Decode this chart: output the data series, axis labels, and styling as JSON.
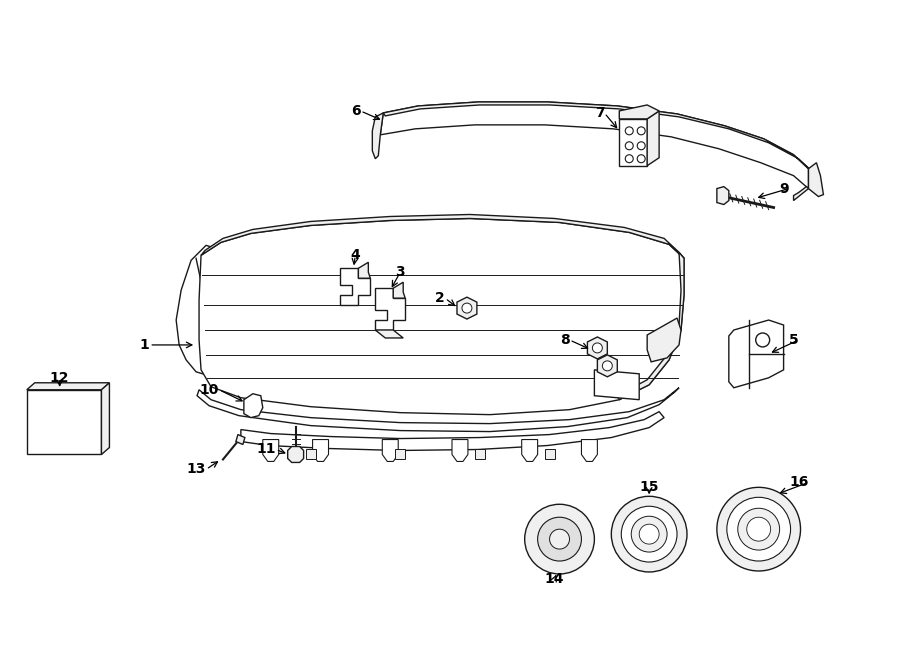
{
  "background_color": "#ffffff",
  "line_color": "#1a1a1a",
  "fill_light": "#f0f0f0",
  "fill_mid": "#e0e0e0",
  "fill_white": "#ffffff",
  "lw": 1.0,
  "fig_width": 9.0,
  "fig_height": 6.61,
  "label_fontsize": 10
}
